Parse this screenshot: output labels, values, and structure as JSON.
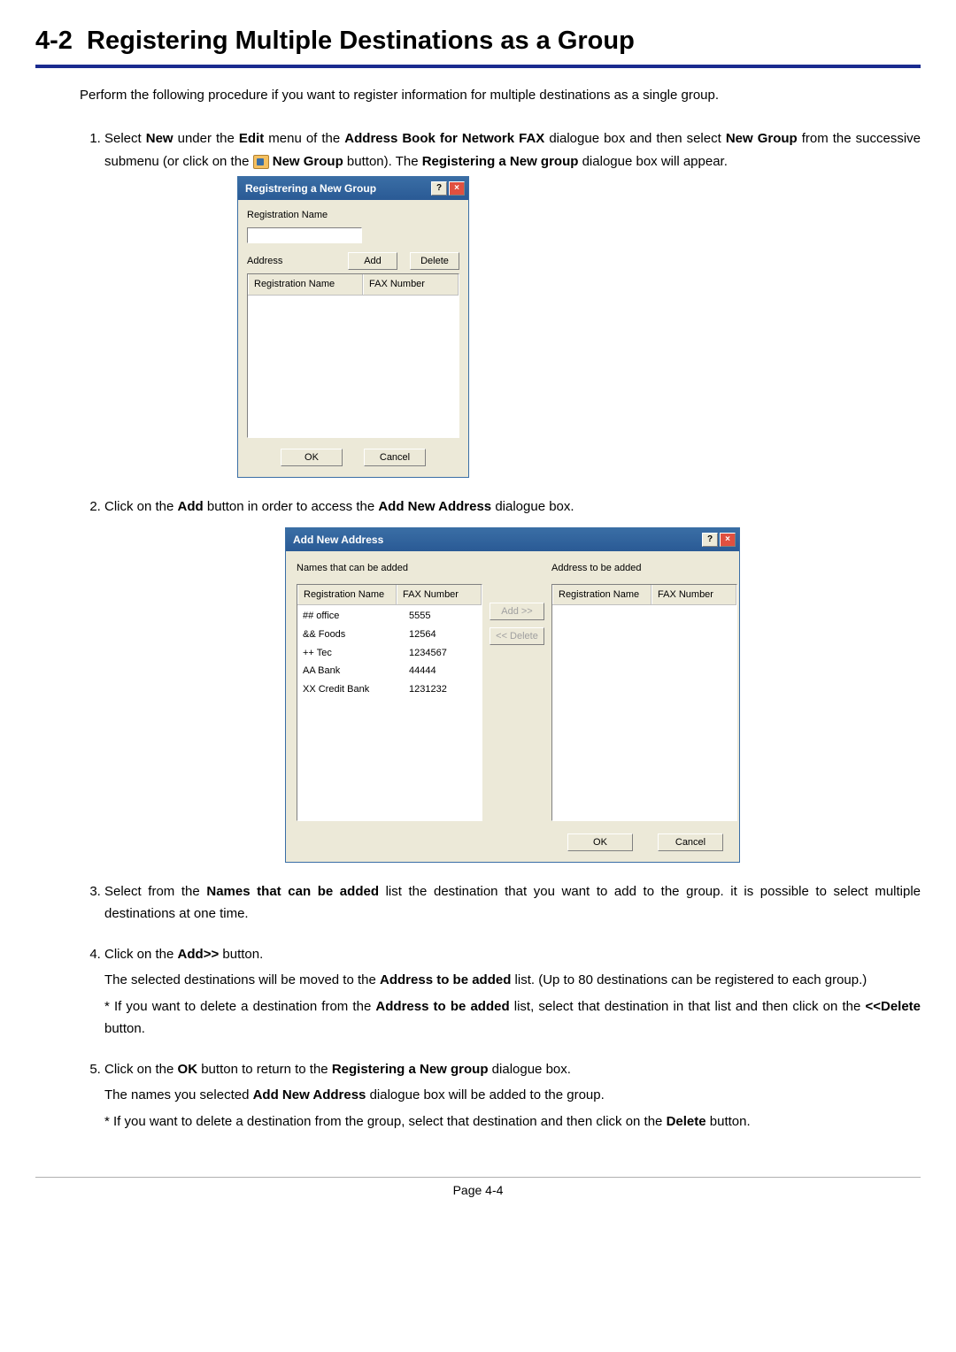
{
  "section_number": "4-2",
  "section_title": "Registering Multiple Destinations as a Group",
  "intro": "Perform the following procedure if you want to register information for multiple destinations as a single group.",
  "step1": {
    "a": "Select ",
    "b_new": "New",
    "c": " under the ",
    "d_edit": "Edit",
    "e": " menu of the ",
    "f_abn": "Address Book for Network FAX",
    "g": " dialogue box and then select ",
    "h_ng": "New Group",
    "i": " from the successive submenu (or click on the ",
    "j_ngbtn": "New Group",
    "k": " button). The ",
    "l_reg": "Registering a New group",
    "m": " dialogue box will appear."
  },
  "dlg1": {
    "title": "Registrering a New Group",
    "reg_name_label": "Registration Name",
    "address_label": "Address",
    "add_btn": "Add",
    "delete_btn": "Delete",
    "col_regname": "Registration Name",
    "col_fax": "FAX Number",
    "ok": "OK",
    "cancel": "Cancel"
  },
  "step2": {
    "a": "Click on the ",
    "b_add": "Add",
    "c": " button in order to access the ",
    "d_ana": "Add New Address",
    "e": " dialogue box."
  },
  "dlg2": {
    "title": "Add New Address",
    "left_label": "Names that can be added",
    "right_label": "Address to be added",
    "col_regname": "Registration Name",
    "col_fax": "FAX Number",
    "add_btn": "Add >>",
    "del_btn": "<< Delete",
    "ok": "OK",
    "cancel": "Cancel",
    "rows": [
      {
        "name": "## office",
        "fax": "5555"
      },
      {
        "name": "&& Foods",
        "fax": "12564"
      },
      {
        "name": "++ Tec",
        "fax": "1234567"
      },
      {
        "name": "AA Bank",
        "fax": "44444"
      },
      {
        "name": "XX Credit Bank",
        "fax": "1231232"
      }
    ]
  },
  "step3": {
    "a": "Select from the ",
    "b": "Names that can be added",
    "c": " list the destination that you want to add to the group. it is possible to select multiple destinations at one time."
  },
  "step4": {
    "l1a": "Click on the ",
    "l1b": "Add>>",
    "l1c": " button.",
    "l2a": "The selected destinations will be moved to the ",
    "l2b": "Address to be added",
    "l2c": " list. (Up to 80 destinations can be registered to each group.)",
    "l3a": "* If you want to delete a destination from the ",
    "l3b": "Address to be added",
    "l3c": " list, select that destination in that list and then click on the ",
    "l3d": "<<Delete",
    "l3e": " button."
  },
  "step5": {
    "l1a": "Click on the ",
    "l1b": "OK",
    "l1c": " button to return to the ",
    "l1d": "Registering a New group",
    "l1e": " dialogue box.",
    "l2a": "The names you selected ",
    "l2b": "Add New Address",
    "l2c": " dialogue box will be added to the group.",
    "l3a": "* If you want to delete a destination from the group, select that destination and then click on the ",
    "l3b": "Delete",
    "l3c": " button."
  },
  "page_number": "Page 4-4",
  "colors": {
    "rule": "#1a2b8f",
    "titlebar": "#3a6ea5",
    "dialog_bg": "#ece9d8"
  },
  "col_widths": {
    "name": 120,
    "fax": 80
  }
}
